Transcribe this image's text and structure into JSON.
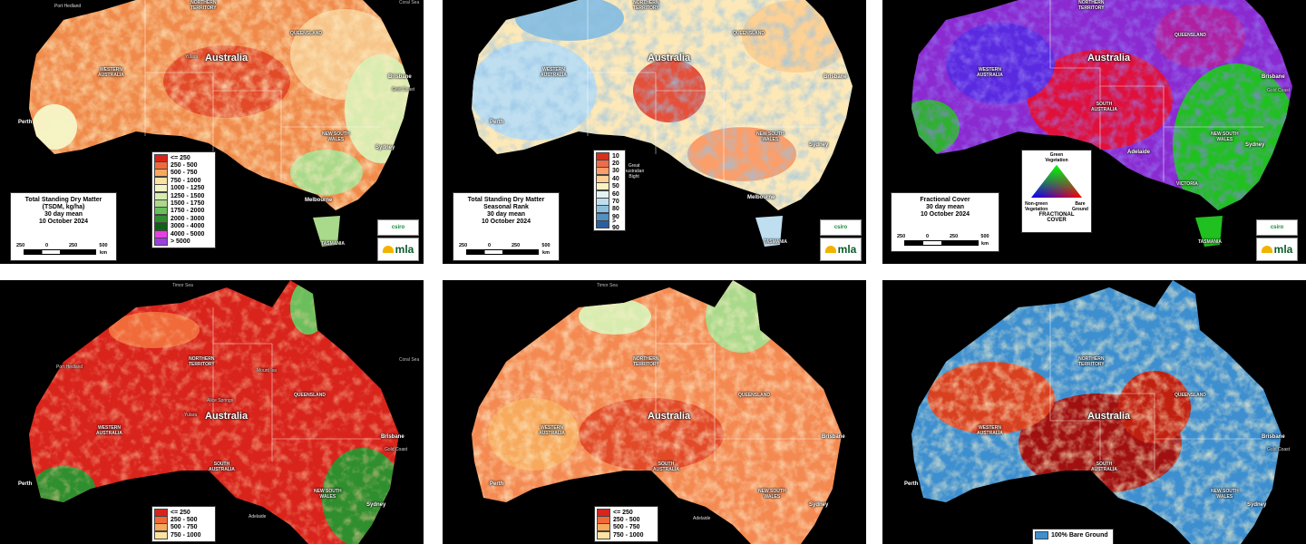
{
  "panels": [
    {
      "id": "p1",
      "title_lines": [
        "Total Standing Dry Matter",
        "(TSDM, kg/ha)",
        "30 day mean",
        "10 October 2024"
      ],
      "legend": [
        {
          "label": "<= 250",
          "color": "#d9241c"
        },
        {
          "label": "250 - 500",
          "color": "#f06a3a"
        },
        {
          "label": "500 - 750",
          "color": "#f7a95c"
        },
        {
          "label": "750 - 1000",
          "color": "#fde3a2"
        },
        {
          "label": "1000 - 1250",
          "color": "#f4f4c4"
        },
        {
          "label": "1250 - 1500",
          "color": "#d8ecb0"
        },
        {
          "label": "1500 - 1750",
          "color": "#a9d98a"
        },
        {
          "label": "1750 - 2000",
          "color": "#6abf5c"
        },
        {
          "label": "2000 - 3000",
          "color": "#2f8f2f"
        },
        {
          "label": "3000 - 4000",
          "color": "#125c1c"
        },
        {
          "label": "4000 - 5000",
          "color": "#e83fe0"
        },
        {
          "label": "> 5000",
          "color": "#9b3fe0"
        }
      ],
      "scale": [
        "250",
        "0",
        "250",
        "500 km"
      ]
    },
    {
      "id": "p2",
      "title_lines": [
        "Total Standing Dry Matter",
        "Seasonal Rank",
        "30 day mean",
        "10 October 2024"
      ],
      "legend": [
        {
          "label": "10",
          "color": "#d7301f"
        },
        {
          "label": "20",
          "color": "#f16a4a"
        },
        {
          "label": "30",
          "color": "#fb9e6a"
        },
        {
          "label": "40",
          "color": "#fdd093"
        },
        {
          "label": "50",
          "color": "#fef3c0"
        },
        {
          "label": "60",
          "color": "#e4f2f2"
        },
        {
          "label": "70",
          "color": "#bfdff0"
        },
        {
          "label": "80",
          "color": "#8cbfde"
        },
        {
          "label": "90",
          "color": "#5090c4"
        },
        {
          "label": "> 90",
          "color": "#2a5fa0"
        }
      ],
      "scale": [
        "250",
        "0",
        "250",
        "500 km"
      ],
      "bight_label": "Great\nAustralian\nBight"
    },
    {
      "id": "p3",
      "title_lines": [
        "Fractional Cover",
        "30 day mean",
        "10 October 2024"
      ],
      "triangle": {
        "top": "Green\nVegetation",
        "left": "Non-green\nVegetation",
        "right": "Bare\nGround",
        "caption": "FRACTIONAL\nCOVER"
      },
      "scale": [
        "250",
        "0",
        "250",
        "500 km"
      ]
    },
    {
      "id": "p4",
      "legend": [
        {
          "label": "<= 250",
          "color": "#d9241c"
        },
        {
          "label": "250 - 500",
          "color": "#f06a3a"
        },
        {
          "label": "500 - 750",
          "color": "#f7a95c"
        },
        {
          "label": "750 - 1000",
          "color": "#fde3a2"
        }
      ]
    },
    {
      "id": "p5",
      "legend": [
        {
          "label": "<= 250",
          "color": "#d9241c"
        },
        {
          "label": "250 - 500",
          "color": "#f06a3a"
        },
        {
          "label": "500 - 750",
          "color": "#f7a95c"
        },
        {
          "label": "750 - 1000",
          "color": "#fde3a2"
        }
      ]
    },
    {
      "id": "p6",
      "legend_partial": "100% Bare Ground",
      "legend_color": "#3d8fd0"
    }
  ],
  "map_labels": {
    "country": "Australia",
    "states": {
      "nt": "NORTHERN\nTERRITORY",
      "wa": "WESTERN\nAUSTRALIA",
      "qld": "QUEENSLAND",
      "sa": "SOUTH\nAUSTRALIA",
      "nsw": "NEW SOUTH\nWALES",
      "tas": "TASMANIA",
      "vic": "VICTORIA"
    },
    "cities": {
      "brisbane": "Brisbane",
      "perth": "Perth",
      "sydney": "Sydney",
      "melbourne": "Melbourne",
      "adelaide": "Adelaide",
      "gold_coast": "Gold Coast",
      "port_hedland": "Port Hedland",
      "alice_springs": "Alice Springs",
      "yulara": "Yulara",
      "mount_isa": "Mount Isa"
    },
    "seas": {
      "coral": "Coral Sea",
      "timor": "Timor Sea"
    }
  },
  "logos": {
    "csiro": "csiro",
    "mla": "mla"
  },
  "colors": {
    "panel_bg": "#000000",
    "frame_bg": "#ffffff"
  }
}
